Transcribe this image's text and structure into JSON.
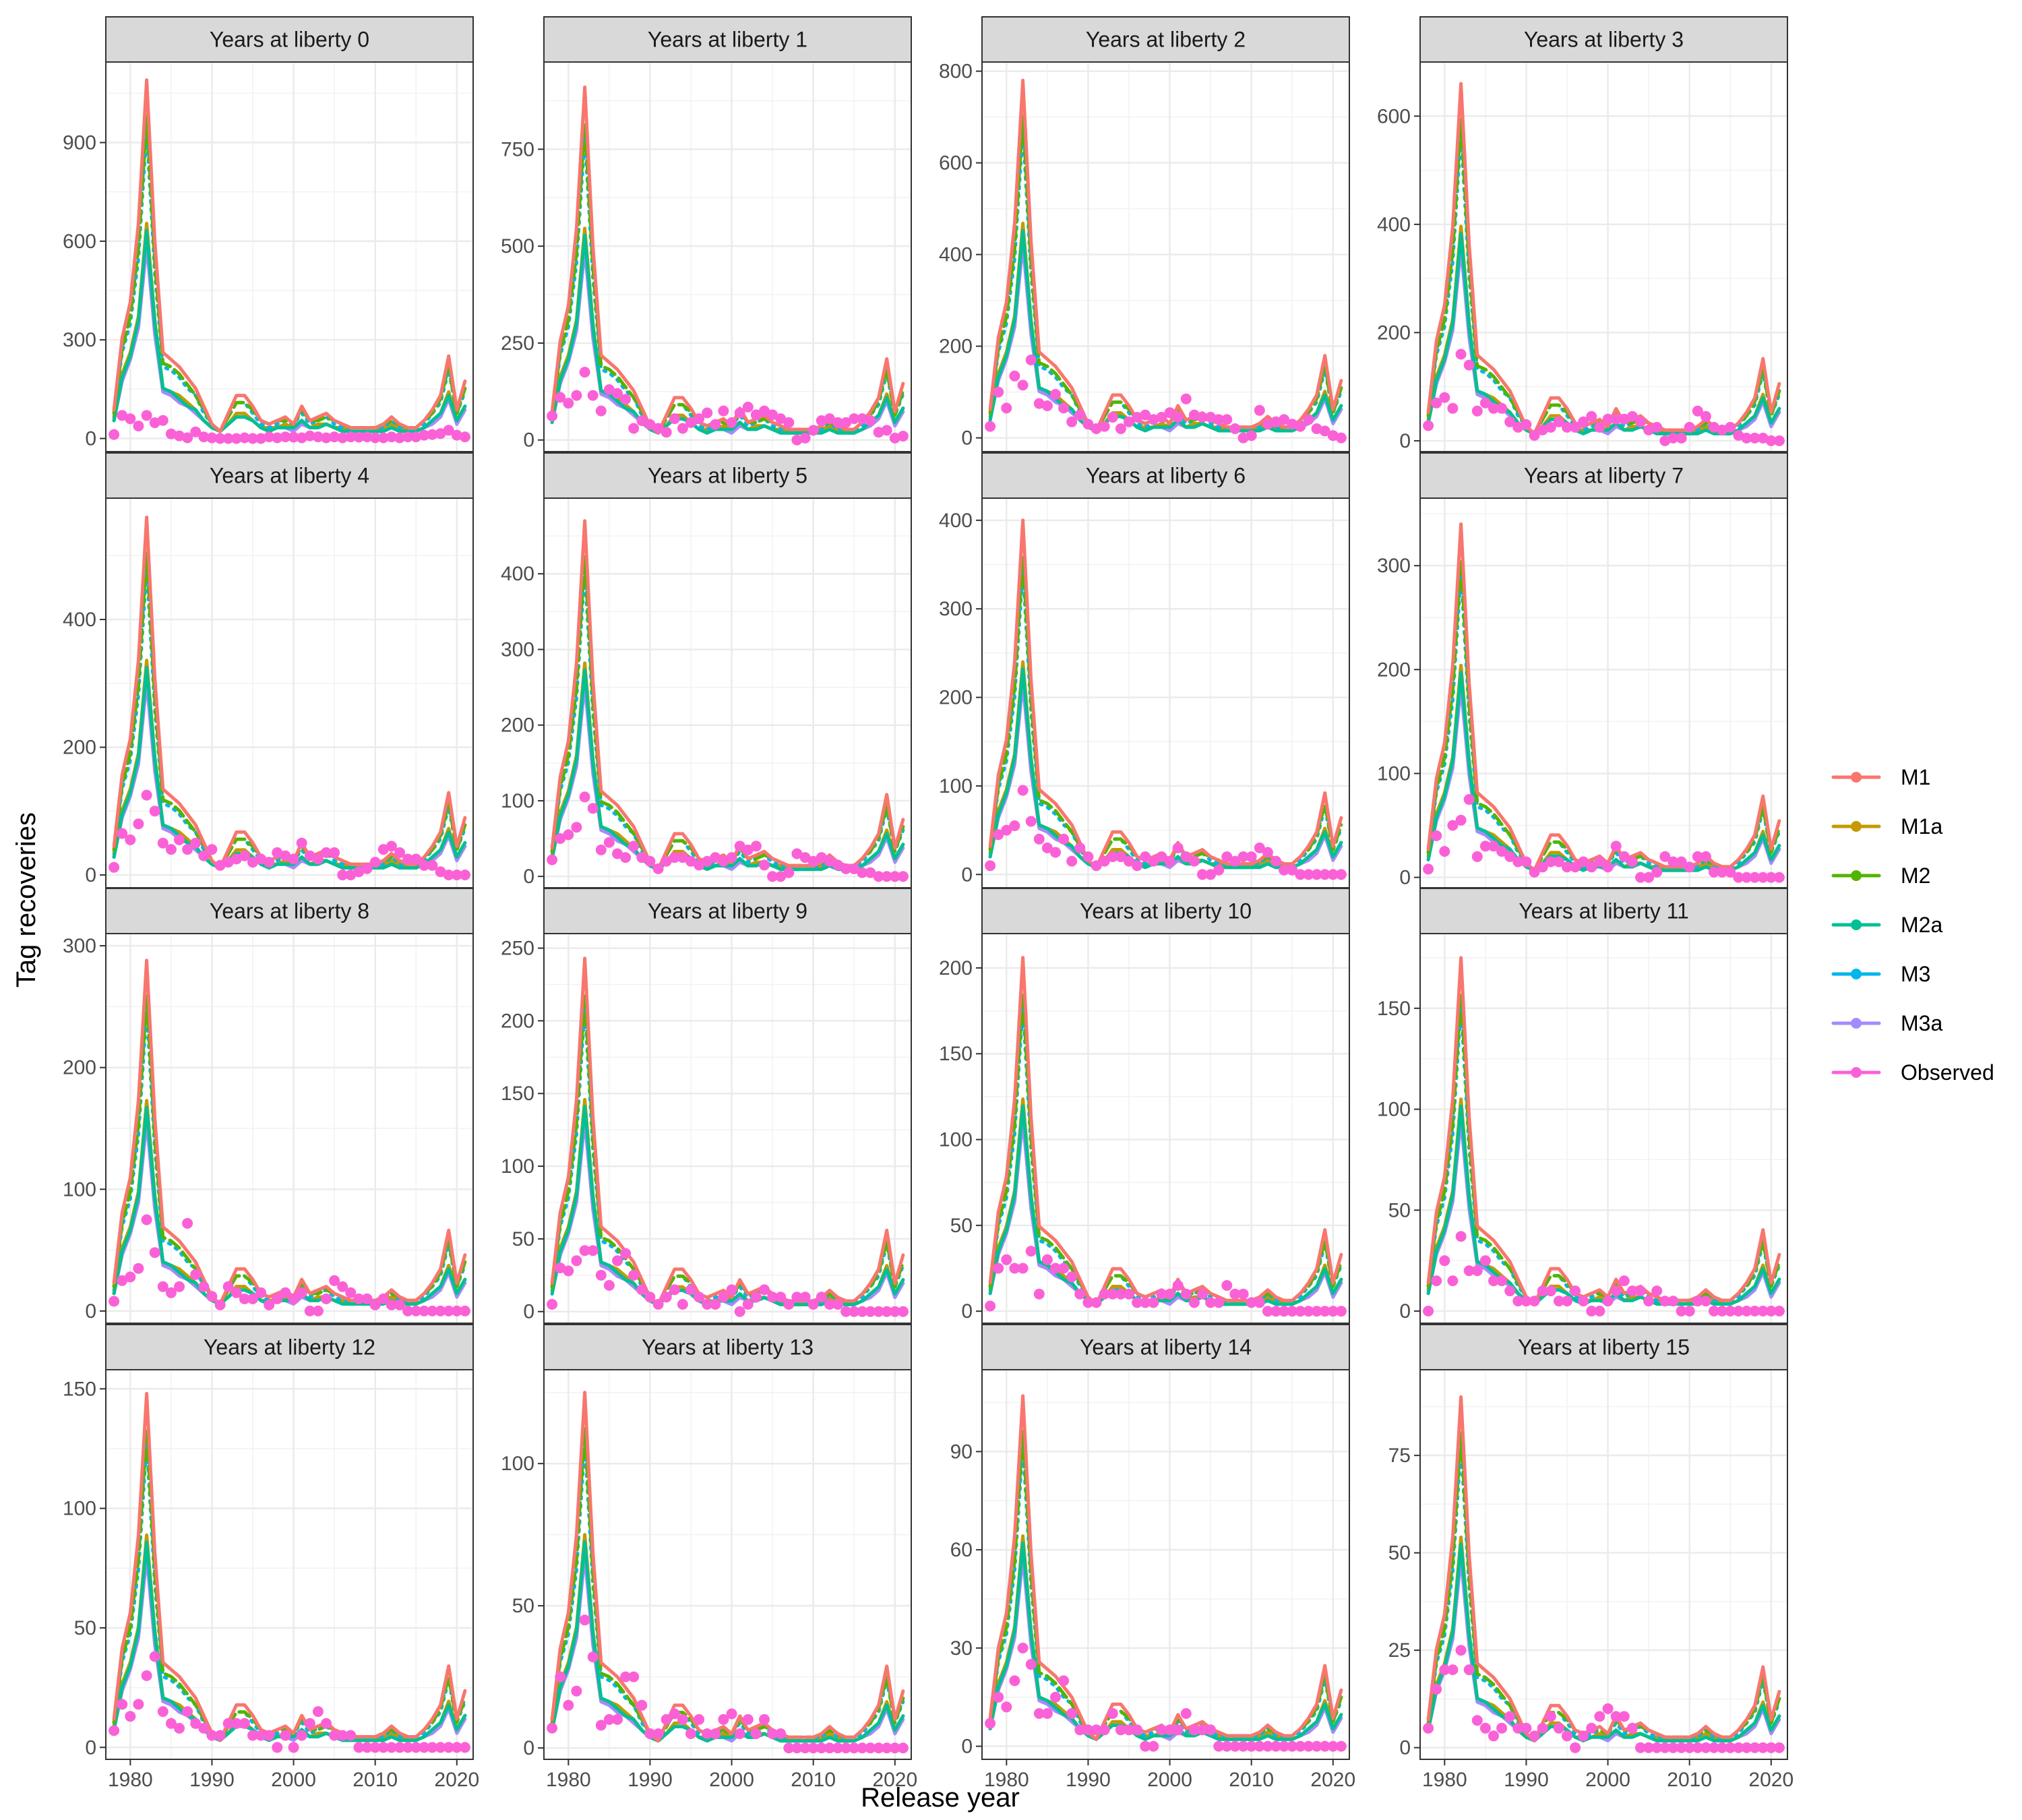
{
  "chart_data": {
    "type": "line",
    "xlabel": "Release year",
    "ylabel": "Tag recoveries",
    "x_ticks": [
      1980,
      1990,
      2000,
      2010,
      2020
    ],
    "xlim": [
      1977,
      2022
    ],
    "legend_position": "right",
    "series_meta": [
      {
        "name": "M1",
        "color": "#F8766D",
        "dash": "solid"
      },
      {
        "name": "M1a",
        "color": "#C49A00",
        "dash": "solid"
      },
      {
        "name": "M2",
        "color": "#53B400",
        "dash": "dashed"
      },
      {
        "name": "M2a",
        "color": "#00C094",
        "dash": "solid"
      },
      {
        "name": "M3",
        "color": "#00B6EB",
        "dash": "dotted"
      },
      {
        "name": "M3a",
        "color": "#A58AFF",
        "dash": "solid"
      },
      {
        "name": "Observed",
        "color": "#FB61D7",
        "dash": "points"
      }
    ],
    "base_pattern": {
      "x": [
        1978,
        1979,
        1980,
        1981,
        1982,
        1983,
        1984,
        1985,
        1986,
        1987,
        1988,
        1989,
        1990,
        1991,
        1992,
        1993,
        1994,
        1995,
        1996,
        1997,
        1998,
        1999,
        2000,
        2001,
        2002,
        2003,
        2004,
        2005,
        2006,
        2007,
        2008,
        2009,
        2010,
        2011,
        2012,
        2013,
        2014,
        2015,
        2016,
        2017,
        2018,
        2019,
        2020,
        2021
      ],
      "M1": [
        0.08,
        0.28,
        0.38,
        0.6,
        1.0,
        0.55,
        0.24,
        0.22,
        0.2,
        0.17,
        0.14,
        0.09,
        0.04,
        0.02,
        0.07,
        0.12,
        0.12,
        0.09,
        0.05,
        0.04,
        0.05,
        0.06,
        0.04,
        0.09,
        0.05,
        0.06,
        0.07,
        0.05,
        0.04,
        0.03,
        0.03,
        0.03,
        0.03,
        0.04,
        0.06,
        0.04,
        0.03,
        0.03,
        0.05,
        0.08,
        0.12,
        0.23,
        0.08,
        0.16
      ],
      "M1a": [
        0.06,
        0.18,
        0.24,
        0.34,
        0.6,
        0.33,
        0.14,
        0.13,
        0.12,
        0.1,
        0.08,
        0.05,
        0.03,
        0.02,
        0.04,
        0.07,
        0.07,
        0.05,
        0.03,
        0.03,
        0.03,
        0.04,
        0.03,
        0.05,
        0.03,
        0.04,
        0.04,
        0.03,
        0.03,
        0.02,
        0.02,
        0.02,
        0.02,
        0.03,
        0.04,
        0.03,
        0.02,
        0.02,
        0.03,
        0.05,
        0.07,
        0.13,
        0.05,
        0.09
      ],
      "M2": [
        0.07,
        0.25,
        0.34,
        0.53,
        0.9,
        0.49,
        0.21,
        0.2,
        0.18,
        0.15,
        0.12,
        0.08,
        0.04,
        0.02,
        0.06,
        0.1,
        0.1,
        0.08,
        0.05,
        0.04,
        0.05,
        0.05,
        0.04,
        0.08,
        0.05,
        0.05,
        0.06,
        0.05,
        0.04,
        0.03,
        0.03,
        0.03,
        0.03,
        0.04,
        0.05,
        0.04,
        0.03,
        0.03,
        0.05,
        0.07,
        0.11,
        0.2,
        0.07,
        0.14
      ],
      "M2a": [
        0.05,
        0.17,
        0.23,
        0.33,
        0.58,
        0.32,
        0.14,
        0.13,
        0.11,
        0.09,
        0.08,
        0.05,
        0.03,
        0.02,
        0.04,
        0.06,
        0.06,
        0.05,
        0.03,
        0.02,
        0.03,
        0.03,
        0.03,
        0.05,
        0.03,
        0.03,
        0.04,
        0.03,
        0.02,
        0.02,
        0.02,
        0.02,
        0.02,
        0.02,
        0.03,
        0.02,
        0.02,
        0.02,
        0.03,
        0.05,
        0.07,
        0.12,
        0.05,
        0.09
      ],
      "M3": [
        0.07,
        0.24,
        0.32,
        0.5,
        0.86,
        0.46,
        0.2,
        0.19,
        0.17,
        0.14,
        0.12,
        0.07,
        0.04,
        0.02,
        0.06,
        0.1,
        0.1,
        0.07,
        0.04,
        0.03,
        0.04,
        0.05,
        0.04,
        0.07,
        0.04,
        0.05,
        0.06,
        0.04,
        0.03,
        0.03,
        0.03,
        0.03,
        0.03,
        0.03,
        0.05,
        0.03,
        0.03,
        0.03,
        0.04,
        0.07,
        0.1,
        0.19,
        0.07,
        0.13
      ],
      "M3a": [
        0.05,
        0.16,
        0.22,
        0.31,
        0.54,
        0.29,
        0.13,
        0.12,
        0.1,
        0.09,
        0.07,
        0.05,
        0.03,
        0.02,
        0.04,
        0.06,
        0.06,
        0.05,
        0.03,
        0.02,
        0.03,
        0.03,
        0.02,
        0.04,
        0.03,
        0.03,
        0.04,
        0.03,
        0.02,
        0.02,
        0.02,
        0.02,
        0.02,
        0.02,
        0.03,
        0.02,
        0.02,
        0.02,
        0.03,
        0.04,
        0.06,
        0.11,
        0.04,
        0.08
      ]
    },
    "panels": [
      {
        "title": "Years at liberty 0",
        "peak": 1090,
        "ylim": [
          -40,
          1145
        ],
        "y_ticks": [
          0,
          300,
          600,
          900
        ],
        "observed": [
          12,
          70,
          60,
          38,
          70,
          48,
          55,
          14,
          8,
          2,
          20,
          5,
          2,
          0,
          0,
          0,
          2,
          0,
          0,
          5,
          2,
          5,
          4,
          2,
          8,
          5,
          2,
          5,
          2,
          5,
          4,
          5,
          2,
          2,
          5,
          2,
          5,
          5,
          10,
          12,
          15,
          25,
          10,
          5
        ]
      },
      {
        "title": "Years at liberty 1",
        "peak": 910,
        "ylim": [
          -30,
          975
        ],
        "y_ticks": [
          0,
          250,
          500,
          750
        ],
        "observed": [
          62,
          110,
          95,
          115,
          175,
          115,
          75,
          130,
          120,
          105,
          30,
          50,
          40,
          30,
          20,
          55,
          30,
          45,
          55,
          70,
          40,
          75,
          45,
          70,
          85,
          65,
          75,
          65,
          55,
          45,
          0,
          5,
          25,
          50,
          55,
          45,
          45,
          55,
          55,
          50,
          20,
          25,
          5,
          10
        ]
      },
      {
        "title": "Years at liberty 2",
        "peak": 780,
        "ylim": [
          -30,
          820
        ],
        "y_ticks": [
          0,
          200,
          400,
          600,
          800
        ],
        "observed": [
          25,
          100,
          65,
          135,
          115,
          170,
          75,
          70,
          95,
          65,
          35,
          50,
          30,
          20,
          25,
          45,
          20,
          35,
          45,
          50,
          40,
          45,
          55,
          45,
          85,
          50,
          45,
          45,
          40,
          40,
          20,
          0,
          5,
          60,
          30,
          35,
          40,
          30,
          25,
          40,
          20,
          15,
          5,
          0
        ]
      },
      {
        "title": "Years at liberty 3",
        "peak": 660,
        "ylim": [
          -20,
          700
        ],
        "y_ticks": [
          0,
          200,
          400,
          600
        ],
        "observed": [
          28,
          70,
          80,
          60,
          160,
          140,
          55,
          70,
          60,
          60,
          35,
          25,
          30,
          10,
          20,
          25,
          35,
          25,
          25,
          35,
          45,
          25,
          40,
          40,
          40,
          45,
          35,
          20,
          25,
          0,
          5,
          5,
          25,
          55,
          45,
          25,
          20,
          25,
          10,
          5,
          5,
          5,
          0,
          0
        ]
      },
      {
        "title": "Years at liberty 4",
        "peak": 560,
        "ylim": [
          -20,
          590
        ],
        "y_ticks": [
          0,
          200,
          400
        ],
        "observed": [
          12,
          65,
          55,
          80,
          125,
          100,
          50,
          40,
          55,
          40,
          50,
          30,
          40,
          15,
          20,
          25,
          30,
          20,
          25,
          20,
          35,
          30,
          25,
          50,
          30,
          25,
          35,
          35,
          0,
          0,
          5,
          10,
          20,
          40,
          45,
          35,
          25,
          25,
          15,
          15,
          5,
          0,
          0,
          0
        ]
      },
      {
        "title": "Years at liberty 5",
        "peak": 470,
        "ylim": [
          -15,
          500
        ],
        "y_ticks": [
          0,
          100,
          200,
          300,
          400
        ],
        "observed": [
          22,
          50,
          55,
          65,
          105,
          90,
          35,
          45,
          30,
          25,
          40,
          25,
          20,
          10,
          20,
          25,
          25,
          20,
          15,
          20,
          25,
          20,
          25,
          40,
          35,
          40,
          15,
          0,
          0,
          5,
          30,
          25,
          20,
          25,
          20,
          15,
          10,
          10,
          5,
          5,
          0,
          0,
          0,
          0
        ]
      },
      {
        "title": "Years at liberty 6",
        "peak": 400,
        "ylim": [
          -15,
          425
        ],
        "y_ticks": [
          0,
          100,
          200,
          300,
          400
        ],
        "observed": [
          10,
          45,
          50,
          55,
          95,
          60,
          40,
          30,
          25,
          40,
          15,
          30,
          20,
          10,
          15,
          20,
          20,
          15,
          10,
          20,
          15,
          20,
          15,
          30,
          20,
          15,
          0,
          0,
          5,
          20,
          15,
          20,
          20,
          30,
          25,
          15,
          5,
          5,
          0,
          0,
          0,
          0,
          0,
          0
        ]
      },
      {
        "title": "Years at liberty 7",
        "peak": 340,
        "ylim": [
          -10,
          365
        ],
        "y_ticks": [
          0,
          100,
          200,
          300
        ],
        "observed": [
          8,
          40,
          25,
          50,
          55,
          75,
          20,
          30,
          30,
          25,
          20,
          15,
          15,
          5,
          10,
          15,
          15,
          10,
          10,
          15,
          10,
          15,
          10,
          30,
          20,
          15,
          0,
          0,
          5,
          20,
          15,
          15,
          10,
          20,
          20,
          5,
          5,
          5,
          0,
          0,
          0,
          0,
          0,
          0
        ]
      },
      {
        "title": "Years at liberty 8",
        "peak": 288,
        "ylim": [
          -10,
          310
        ],
        "y_ticks": [
          0,
          100,
          200,
          300
        ],
        "observed": [
          8,
          25,
          28,
          35,
          75,
          48,
          20,
          15,
          20,
          72,
          30,
          20,
          12,
          5,
          20,
          15,
          10,
          10,
          15,
          5,
          10,
          15,
          10,
          15,
          0,
          0,
          10,
          25,
          20,
          15,
          10,
          10,
          5,
          10,
          5,
          5,
          0,
          0,
          0,
          0,
          0,
          0,
          0,
          0
        ]
      },
      {
        "title": "Years at liberty 9",
        "peak": 243,
        "ylim": [
          -8,
          260
        ],
        "y_ticks": [
          0,
          50,
          100,
          150,
          200,
          250
        ],
        "observed": [
          5,
          30,
          28,
          35,
          42,
          42,
          25,
          18,
          35,
          40,
          25,
          15,
          10,
          5,
          10,
          15,
          5,
          15,
          10,
          5,
          5,
          10,
          15,
          0,
          5,
          10,
          15,
          10,
          10,
          5,
          10,
          10,
          5,
          10,
          5,
          5,
          0,
          0,
          0,
          0,
          0,
          0,
          0,
          0
        ]
      },
      {
        "title": "Years at liberty 10",
        "peak": 206,
        "ylim": [
          -7,
          220
        ],
        "y_ticks": [
          0,
          50,
          100,
          150,
          200
        ],
        "observed": [
          3,
          25,
          30,
          25,
          25,
          35,
          10,
          30,
          25,
          25,
          20,
          10,
          5,
          5,
          10,
          10,
          10,
          10,
          5,
          5,
          5,
          10,
          10,
          15,
          10,
          5,
          10,
          5,
          5,
          15,
          10,
          10,
          5,
          5,
          0,
          0,
          0,
          0,
          0,
          0,
          0,
          0,
          0,
          0
        ]
      },
      {
        "title": "Years at liberty 11",
        "peak": 175,
        "ylim": [
          -6,
          187
        ],
        "y_ticks": [
          0,
          50,
          100,
          150
        ],
        "observed": [
          0,
          15,
          25,
          15,
          37,
          20,
          20,
          25,
          15,
          15,
          10,
          5,
          5,
          5,
          10,
          10,
          5,
          5,
          10,
          5,
          0,
          0,
          5,
          10,
          15,
          10,
          10,
          5,
          10,
          5,
          5,
          0,
          0,
          5,
          5,
          0,
          0,
          0,
          0,
          0,
          0,
          0,
          0,
          0
        ]
      },
      {
        "title": "Years at liberty 12",
        "peak": 148,
        "ylim": [
          -5,
          158
        ],
        "y_ticks": [
          0,
          50,
          100,
          150
        ],
        "observed": [
          7,
          18,
          13,
          18,
          30,
          38,
          15,
          10,
          8,
          15,
          10,
          8,
          5,
          5,
          10,
          10,
          10,
          5,
          5,
          5,
          0,
          5,
          0,
          5,
          10,
          15,
          10,
          5,
          5,
          5,
          0,
          0,
          0,
          0,
          0,
          0,
          0,
          0,
          0,
          0,
          0,
          0,
          0,
          0
        ]
      },
      {
        "title": "Years at liberty 13",
        "peak": 125,
        "ylim": [
          -4,
          133
        ],
        "y_ticks": [
          0,
          50,
          100
        ],
        "observed": [
          7,
          25,
          15,
          20,
          45,
          32,
          8,
          10,
          10,
          25,
          25,
          15,
          5,
          5,
          10,
          12,
          10,
          5,
          10,
          5,
          5,
          10,
          12,
          5,
          10,
          5,
          10,
          5,
          5,
          0,
          0,
          0,
          0,
          0,
          0,
          0,
          0,
          0,
          0,
          0,
          0,
          0,
          0,
          0
        ]
      },
      {
        "title": "Years at liberty 14",
        "peak": 107,
        "ylim": [
          -4,
          115
        ],
        "y_ticks": [
          0,
          30,
          60,
          90
        ],
        "observed": [
          7,
          15,
          12,
          20,
          30,
          25,
          10,
          10,
          15,
          20,
          10,
          5,
          5,
          5,
          5,
          10,
          5,
          5,
          5,
          0,
          0,
          5,
          5,
          5,
          10,
          5,
          5,
          5,
          0,
          0,
          0,
          0,
          0,
          0,
          0,
          0,
          0,
          0,
          0,
          0,
          0,
          0,
          0,
          0
        ]
      },
      {
        "title": "Years at liberty 15",
        "peak": 90,
        "ylim": [
          -3,
          97
        ],
        "y_ticks": [
          0,
          25,
          50,
          75
        ],
        "observed": [
          5,
          15,
          20,
          20,
          25,
          20,
          7,
          5,
          3,
          5,
          8,
          5,
          5,
          3,
          5,
          8,
          5,
          3,
          0,
          3,
          5,
          8,
          10,
          8,
          8,
          5,
          0,
          0,
          0,
          0,
          0,
          0,
          0,
          0,
          0,
          0,
          0,
          0,
          0,
          0,
          0,
          0,
          0,
          0
        ]
      }
    ]
  }
}
